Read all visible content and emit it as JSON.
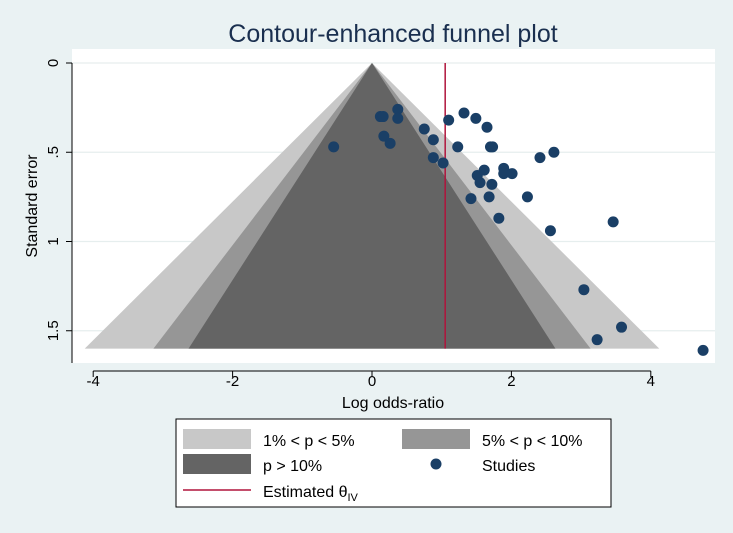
{
  "chart_data": {
    "type": "scatter",
    "title": "Contour-enhanced funnel plot",
    "xlabel": "Log odds-ratio",
    "ylabel": "Standard error",
    "xlim": [
      -4.4,
      4.9
    ],
    "ylim": [
      0,
      1.6
    ],
    "y_reversed": true,
    "grid": true,
    "xticks": [
      -4,
      -2,
      0,
      2,
      4
    ],
    "xtick_labels": [
      "-4",
      "-2",
      "0",
      "2",
      "4"
    ],
    "yticks": [
      0,
      0.5,
      1,
      1.5
    ],
    "ytick_labels": [
      "0",
      ".5",
      "1",
      "1.5"
    ],
    "contours": [
      {
        "label": "1% < p < 5%",
        "z": 2.576,
        "color": "#c8c8c8"
      },
      {
        "label": "5% < p < 10%",
        "z": 1.96,
        "color": "#969696"
      },
      {
        "label": "p > 10%",
        "z": 1.645,
        "color": "#646464"
      }
    ],
    "estimated_theta": {
      "label": "Estimated θ",
      "subscript": "IV",
      "value": 1.05,
      "color": "#b0143c"
    },
    "studies": {
      "label": "Studies",
      "color": "#1a3f66",
      "points": [
        {
          "x": -0.55,
          "y": 0.47
        },
        {
          "x": 0.12,
          "y": 0.3
        },
        {
          "x": 0.16,
          "y": 0.3
        },
        {
          "x": 0.37,
          "y": 0.26
        },
        {
          "x": 0.37,
          "y": 0.31
        },
        {
          "x": 0.17,
          "y": 0.41
        },
        {
          "x": 0.26,
          "y": 0.45
        },
        {
          "x": 0.75,
          "y": 0.37
        },
        {
          "x": 0.88,
          "y": 0.43
        },
        {
          "x": 0.88,
          "y": 0.53
        },
        {
          "x": 1.02,
          "y": 0.56
        },
        {
          "x": 1.1,
          "y": 0.32
        },
        {
          "x": 1.23,
          "y": 0.47
        },
        {
          "x": 1.32,
          "y": 0.28
        },
        {
          "x": 1.49,
          "y": 0.31
        },
        {
          "x": 1.65,
          "y": 0.36
        },
        {
          "x": 1.7,
          "y": 0.47
        },
        {
          "x": 1.73,
          "y": 0.47
        },
        {
          "x": 1.51,
          "y": 0.63
        },
        {
          "x": 1.55,
          "y": 0.67
        },
        {
          "x": 1.61,
          "y": 0.6
        },
        {
          "x": 1.72,
          "y": 0.68
        },
        {
          "x": 1.89,
          "y": 0.59
        },
        {
          "x": 1.89,
          "y": 0.62
        },
        {
          "x": 2.01,
          "y": 0.62
        },
        {
          "x": 1.42,
          "y": 0.76
        },
        {
          "x": 1.68,
          "y": 0.75
        },
        {
          "x": 2.23,
          "y": 0.75
        },
        {
          "x": 1.82,
          "y": 0.87
        },
        {
          "x": 2.41,
          "y": 0.53
        },
        {
          "x": 2.61,
          "y": 0.5
        },
        {
          "x": 2.56,
          "y": 0.94
        },
        {
          "x": 3.46,
          "y": 0.89
        },
        {
          "x": 3.04,
          "y": 1.27
        },
        {
          "x": 3.58,
          "y": 1.48
        },
        {
          "x": 3.23,
          "y": 1.55
        },
        {
          "x": 4.75,
          "y": 1.61
        }
      ]
    },
    "legend": {
      "position": "bottom",
      "entries": [
        {
          "label": "1% < p < 5%",
          "kind": "swatch",
          "color": "#c8c8c8"
        },
        {
          "label": "5% < p < 10%",
          "kind": "swatch",
          "color": "#969696"
        },
        {
          "label": "p > 10%",
          "kind": "swatch",
          "color": "#646464"
        },
        {
          "label": "Studies",
          "kind": "marker",
          "color": "#1a3f66"
        },
        {
          "label": "Estimated θ",
          "subscript": "IV",
          "kind": "line",
          "color": "#b0143c"
        }
      ]
    }
  }
}
